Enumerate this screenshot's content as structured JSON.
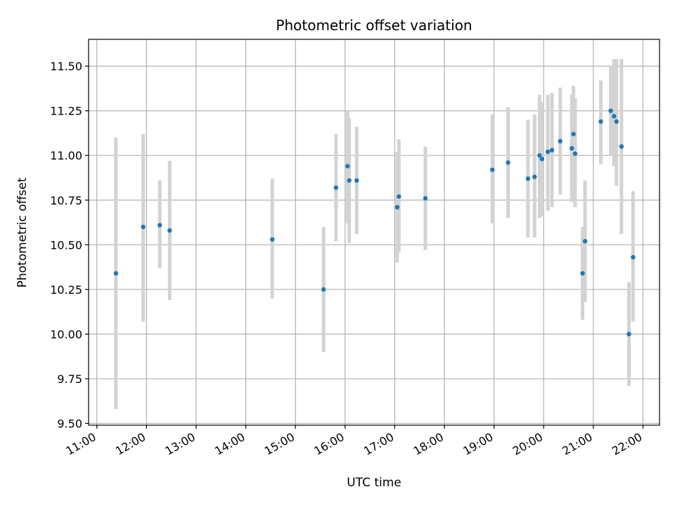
{
  "chart_data": {
    "type": "scatter",
    "title": "Photometric offset variation",
    "xlabel": "UTC time",
    "ylabel": "Photometric offset",
    "x_axis_kind": "time",
    "xlim": [
      "10:50",
      "22:20"
    ],
    "ylim": [
      9.49,
      11.65
    ],
    "x_ticks": [
      "11:00",
      "12:00",
      "13:00",
      "14:00",
      "15:00",
      "16:00",
      "17:00",
      "18:00",
      "19:00",
      "20:00",
      "21:00",
      "22:00"
    ],
    "y_ticks": [
      9.5,
      9.75,
      10.0,
      10.25,
      10.5,
      10.75,
      11.0,
      11.25,
      11.5
    ],
    "y_tick_labels": [
      "9.50",
      "9.75",
      "10.00",
      "10.25",
      "10.50",
      "10.75",
      "11.00",
      "11.25",
      "11.50"
    ],
    "grid": true,
    "legend": null,
    "colors": {
      "point": "#1f77b4",
      "errorbar": "#d3d3d3",
      "grid": "#b0b0b0",
      "axes": "#000000"
    },
    "points": [
      {
        "x": "11:23",
        "y": 10.34,
        "ylo": 9.58,
        "yhi": 11.1
      },
      {
        "x": "11:56",
        "y": 10.6,
        "ylo": 10.07,
        "yhi": 11.12
      },
      {
        "x": "12:16",
        "y": 10.61,
        "ylo": 10.37,
        "yhi": 10.86
      },
      {
        "x": "12:28",
        "y": 10.58,
        "ylo": 10.19,
        "yhi": 10.97
      },
      {
        "x": "14:32",
        "y": 10.53,
        "ylo": 10.2,
        "yhi": 10.87
      },
      {
        "x": "15:34",
        "y": 10.25,
        "ylo": 9.9,
        "yhi": 10.6
      },
      {
        "x": "15:49",
        "y": 10.82,
        "ylo": 10.52,
        "yhi": 11.12
      },
      {
        "x": "16:03",
        "y": 10.94,
        "ylo": 10.62,
        "yhi": 11.25
      },
      {
        "x": "16:05",
        "y": 10.86,
        "ylo": 10.51,
        "yhi": 11.21
      },
      {
        "x": "16:14",
        "y": 10.86,
        "ylo": 10.56,
        "yhi": 11.16
      },
      {
        "x": "17:03",
        "y": 10.71,
        "ylo": 10.4,
        "yhi": 11.02
      },
      {
        "x": "17:05",
        "y": 10.77,
        "ylo": 10.46,
        "yhi": 11.09
      },
      {
        "x": "17:37",
        "y": 10.76,
        "ylo": 10.47,
        "yhi": 11.05
      },
      {
        "x": "18:58",
        "y": 10.92,
        "ylo": 10.62,
        "yhi": 11.23
      },
      {
        "x": "19:17",
        "y": 10.96,
        "ylo": 10.65,
        "yhi": 11.27
      },
      {
        "x": "19:41",
        "y": 10.87,
        "ylo": 10.54,
        "yhi": 11.2
      },
      {
        "x": "19:49",
        "y": 10.88,
        "ylo": 10.54,
        "yhi": 11.23
      },
      {
        "x": "19:55",
        "y": 11.0,
        "ylo": 10.65,
        "yhi": 11.34
      },
      {
        "x": "19:58",
        "y": 10.98,
        "ylo": 10.66,
        "yhi": 11.3
      },
      {
        "x": "20:05",
        "y": 11.02,
        "ylo": 10.69,
        "yhi": 11.34
      },
      {
        "x": "20:10",
        "y": 11.03,
        "ylo": 10.71,
        "yhi": 11.35
      },
      {
        "x": "20:20",
        "y": 11.08,
        "ylo": 10.78,
        "yhi": 11.38
      },
      {
        "x": "20:34",
        "y": 11.04,
        "ylo": 10.74,
        "yhi": 11.34
      },
      {
        "x": "20:36",
        "y": 11.12,
        "ylo": 10.85,
        "yhi": 11.39
      },
      {
        "x": "20:38",
        "y": 11.01,
        "ylo": 10.71,
        "yhi": 11.32
      },
      {
        "x": "20:47",
        "y": 10.34,
        "ylo": 10.08,
        "yhi": 10.6
      },
      {
        "x": "20:50",
        "y": 10.52,
        "ylo": 10.18,
        "yhi": 10.86
      },
      {
        "x": "21:09",
        "y": 11.19,
        "ylo": 10.95,
        "yhi": 11.42
      },
      {
        "x": "21:21",
        "y": 11.25,
        "ylo": 11.0,
        "yhi": 11.5
      },
      {
        "x": "21:25",
        "y": 11.22,
        "ylo": 10.94,
        "yhi": 11.54
      },
      {
        "x": "21:28",
        "y": 11.19,
        "ylo": 10.83,
        "yhi": 11.54
      },
      {
        "x": "21:34",
        "y": 11.05,
        "ylo": 10.56,
        "yhi": 11.54
      },
      {
        "x": "21:43",
        "y": 10.0,
        "ylo": 9.71,
        "yhi": 10.29
      },
      {
        "x": "21:48",
        "y": 10.43,
        "ylo": 10.07,
        "yhi": 10.8
      }
    ]
  }
}
